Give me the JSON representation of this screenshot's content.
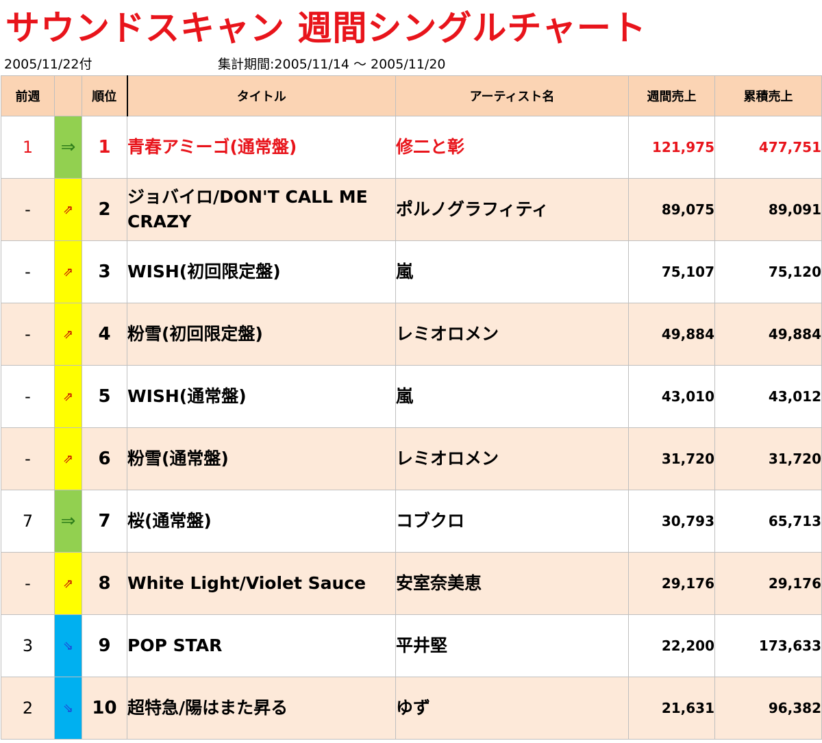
{
  "header": {
    "title": "サウンドスキャン 週間シングルチャート",
    "date": "2005/11/22付",
    "period": "集計期間:2005/11/14 ～ 2005/11/20"
  },
  "columns": {
    "prev": "前週",
    "trend": "",
    "rank": "順位",
    "title": "タイトル",
    "artist": "アーティスト名",
    "week": "週間売上",
    "total": "累積売上"
  },
  "colors": {
    "title_red": "#e8141b",
    "header_bg": "#fbd4b4",
    "stripe_bg": "#fde9d9",
    "trend_same": "#92d050",
    "trend_up": "#ffff00",
    "trend_down": "#00b0f0"
  },
  "chart_data": {
    "type": "table",
    "rows": [
      {
        "prev": "1",
        "trend": "same",
        "arrow": "⇒",
        "rank": "1",
        "title": "青春アミーゴ(通常盤)",
        "artist": "修二と彰",
        "week": "121,975",
        "total": "477,751"
      },
      {
        "prev": "-",
        "trend": "up",
        "arrow": "⇗",
        "rank": "2",
        "title": "ジョバイロ/DON'T CALL ME CRAZY",
        "artist": "ポルノグラフィティ",
        "week": "89,075",
        "total": "89,091"
      },
      {
        "prev": "-",
        "trend": "up",
        "arrow": "⇗",
        "rank": "3",
        "title": "WISH(初回限定盤)",
        "artist": "嵐",
        "week": "75,107",
        "total": "75,120"
      },
      {
        "prev": "-",
        "trend": "up",
        "arrow": "⇗",
        "rank": "4",
        "title": "粉雪(初回限定盤)",
        "artist": "レミオロメン",
        "week": "49,884",
        "total": "49,884"
      },
      {
        "prev": "-",
        "trend": "up",
        "arrow": "⇗",
        "rank": "5",
        "title": "WISH(通常盤)",
        "artist": "嵐",
        "week": "43,010",
        "total": "43,012"
      },
      {
        "prev": "-",
        "trend": "up",
        "arrow": "⇗",
        "rank": "6",
        "title": "粉雪(通常盤)",
        "artist": "レミオロメン",
        "week": "31,720",
        "total": "31,720"
      },
      {
        "prev": "7",
        "trend": "same",
        "arrow": "⇒",
        "rank": "7",
        "title": "桜(通常盤)",
        "artist": "コブクロ",
        "week": "30,793",
        "total": "65,713"
      },
      {
        "prev": "-",
        "trend": "up",
        "arrow": "⇗",
        "rank": "8",
        "title": "White Light/Violet Sauce",
        "artist": "安室奈美恵",
        "week": "29,176",
        "total": "29,176"
      },
      {
        "prev": "3",
        "trend": "down",
        "arrow": "⇘",
        "rank": "9",
        "title": "POP STAR",
        "artist": "平井堅",
        "week": "22,200",
        "total": "173,633"
      },
      {
        "prev": "2",
        "trend": "down",
        "arrow": "⇘",
        "rank": "10",
        "title": "超特急/陽はまた昇る",
        "artist": "ゆず",
        "week": "21,631",
        "total": "96,382"
      }
    ]
  }
}
